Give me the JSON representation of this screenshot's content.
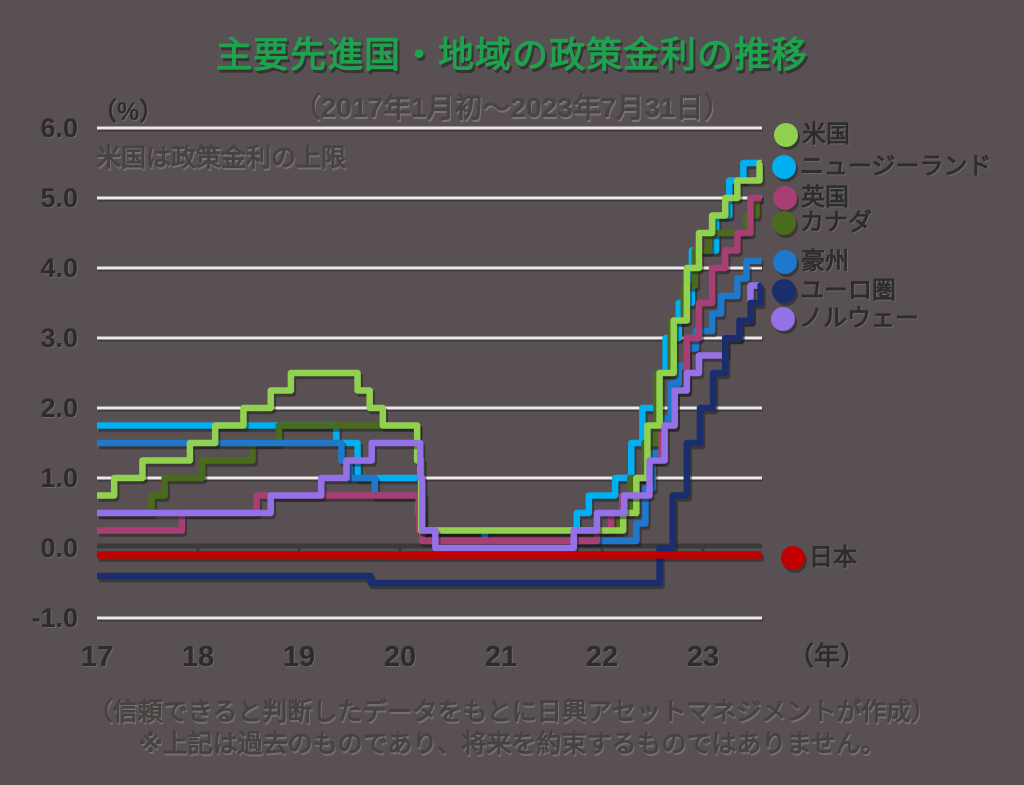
{
  "title": "主要先進国・地域の政策金利の推移",
  "subtitle": "（2017年1月初～2023年7月31日）",
  "y_axis_unit": "（%）",
  "x_axis_unit": "（年）",
  "annotation": "米国は政策金利の上限",
  "footer": {
    "line1": "（信頼できると判断したデータをもとに日興アセットマネジメントが作成）",
    "line2": "※上記は過去のものであり、将来を約束するものではありません。"
  },
  "colors": {
    "background": "#585052",
    "title_green": "#1FA24E",
    "gridline": "#ECEAE7",
    "zero_axis": "#3A3A3A",
    "tick_text": "#2C2C2C"
  },
  "chart_data": {
    "type": "line",
    "step": true,
    "x_range": [
      17.0,
      23.58
    ],
    "ylim": [
      -1.0,
      6.0
    ],
    "y_ticks": [
      6.0,
      5.0,
      4.0,
      3.0,
      2.0,
      1.0,
      0.0,
      -1.0
    ],
    "x_ticks": [
      17,
      18,
      19,
      20,
      21,
      22,
      23
    ],
    "grid": "horizontal",
    "legend_position": "right",
    "draw_order": [
      1,
      3,
      4,
      2,
      0,
      6,
      5,
      7
    ],
    "series": [
      {
        "key": "us",
        "name": "米国",
        "color": "#92D050",
        "points": [
          [
            17.0,
            0.75
          ],
          [
            17.17,
            1.0
          ],
          [
            17.45,
            1.25
          ],
          [
            17.92,
            1.5
          ],
          [
            18.17,
            1.75
          ],
          [
            18.45,
            2.0
          ],
          [
            18.72,
            2.25
          ],
          [
            18.92,
            2.5
          ],
          [
            19.58,
            2.25
          ],
          [
            19.7,
            2.0
          ],
          [
            19.83,
            1.75
          ],
          [
            20.17,
            1.25
          ],
          [
            20.21,
            0.25
          ],
          [
            22.21,
            0.5
          ],
          [
            22.34,
            1.0
          ],
          [
            22.45,
            1.75
          ],
          [
            22.57,
            2.5
          ],
          [
            22.71,
            3.25
          ],
          [
            22.84,
            4.0
          ],
          [
            22.96,
            4.5
          ],
          [
            23.09,
            4.75
          ],
          [
            23.22,
            5.0
          ],
          [
            23.34,
            5.25
          ],
          [
            23.56,
            5.5
          ]
        ]
      },
      {
        "key": "nz",
        "name": "ニュージーランド",
        "color": "#00B0F0",
        "points": [
          [
            17.0,
            1.75
          ],
          [
            19.37,
            1.5
          ],
          [
            19.58,
            1.0
          ],
          [
            20.21,
            0.25
          ],
          [
            21.75,
            0.5
          ],
          [
            21.87,
            0.75
          ],
          [
            22.13,
            1.0
          ],
          [
            22.29,
            1.5
          ],
          [
            22.4,
            2.0
          ],
          [
            22.54,
            2.5
          ],
          [
            22.63,
            3.0
          ],
          [
            22.76,
            3.5
          ],
          [
            22.89,
            4.25
          ],
          [
            23.13,
            4.75
          ],
          [
            23.26,
            5.25
          ],
          [
            23.4,
            5.5
          ]
        ]
      },
      {
        "key": "uk",
        "name": "英国",
        "color": "#A73F74",
        "points": [
          [
            17.0,
            0.25
          ],
          [
            17.84,
            0.5
          ],
          [
            18.58,
            0.75
          ],
          [
            20.19,
            0.25
          ],
          [
            20.22,
            0.1
          ],
          [
            21.95,
            0.25
          ],
          [
            22.09,
            0.5
          ],
          [
            22.2,
            0.75
          ],
          [
            22.34,
            1.0
          ],
          [
            22.46,
            1.25
          ],
          [
            22.59,
            1.75
          ],
          [
            22.72,
            2.25
          ],
          [
            22.84,
            3.0
          ],
          [
            22.96,
            3.5
          ],
          [
            23.09,
            4.0
          ],
          [
            23.22,
            4.25
          ],
          [
            23.34,
            4.5
          ],
          [
            23.47,
            5.0
          ]
        ]
      },
      {
        "key": "canada",
        "name": "カナダ",
        "color": "#4A6B1E",
        "points": [
          [
            17.0,
            0.5
          ],
          [
            17.54,
            0.75
          ],
          [
            17.67,
            1.0
          ],
          [
            18.04,
            1.25
          ],
          [
            18.54,
            1.5
          ],
          [
            18.8,
            1.75
          ],
          [
            20.17,
            1.25
          ],
          [
            20.2,
            0.75
          ],
          [
            20.23,
            0.25
          ],
          [
            22.17,
            0.5
          ],
          [
            22.28,
            1.0
          ],
          [
            22.42,
            1.5
          ],
          [
            22.54,
            2.5
          ],
          [
            22.68,
            3.25
          ],
          [
            22.81,
            3.75
          ],
          [
            22.92,
            4.25
          ],
          [
            23.06,
            4.5
          ],
          [
            23.43,
            4.75
          ],
          [
            23.53,
            5.0
          ]
        ]
      },
      {
        "key": "australia",
        "name": "豪州",
        "color": "#1E78CC",
        "points": [
          [
            17.0,
            1.5
          ],
          [
            19.42,
            1.25
          ],
          [
            19.5,
            1.0
          ],
          [
            19.75,
            0.75
          ],
          [
            20.18,
            0.5
          ],
          [
            20.22,
            0.25
          ],
          [
            20.84,
            0.1
          ],
          [
            22.34,
            0.35
          ],
          [
            22.43,
            0.85
          ],
          [
            22.5,
            1.35
          ],
          [
            22.6,
            1.85
          ],
          [
            22.68,
            2.35
          ],
          [
            22.76,
            2.6
          ],
          [
            22.84,
            2.85
          ],
          [
            22.93,
            3.1
          ],
          [
            23.09,
            3.35
          ],
          [
            23.18,
            3.6
          ],
          [
            23.34,
            3.85
          ],
          [
            23.43,
            4.1
          ]
        ]
      },
      {
        "key": "euro",
        "name": "ユーロ圏",
        "color": "#1A2E6E",
        "points": [
          [
            17.0,
            -0.4
          ],
          [
            19.71,
            -0.5
          ],
          [
            22.57,
            0.0
          ],
          [
            22.7,
            0.75
          ],
          [
            22.84,
            1.5
          ],
          [
            22.97,
            2.0
          ],
          [
            23.1,
            2.5
          ],
          [
            23.22,
            3.0
          ],
          [
            23.36,
            3.25
          ],
          [
            23.47,
            3.5
          ],
          [
            23.57,
            3.75
          ]
        ]
      },
      {
        "key": "norway",
        "name": "ノルウェー",
        "color": "#9571E8",
        "points": [
          [
            17.0,
            0.5
          ],
          [
            18.72,
            0.75
          ],
          [
            19.22,
            1.0
          ],
          [
            19.47,
            1.25
          ],
          [
            19.72,
            1.5
          ],
          [
            20.2,
            1.0
          ],
          [
            20.22,
            0.25
          ],
          [
            20.35,
            0.0
          ],
          [
            21.72,
            0.25
          ],
          [
            21.95,
            0.5
          ],
          [
            22.22,
            0.75
          ],
          [
            22.47,
            1.25
          ],
          [
            22.62,
            1.75
          ],
          [
            22.72,
            2.25
          ],
          [
            22.84,
            2.5
          ],
          [
            22.96,
            2.75
          ],
          [
            23.22,
            3.0
          ],
          [
            23.36,
            3.25
          ],
          [
            23.47,
            3.75
          ]
        ]
      },
      {
        "key": "japan",
        "name": "日本",
        "color": "#C00000",
        "points": [
          [
            17.0,
            -0.1
          ]
        ]
      }
    ]
  }
}
